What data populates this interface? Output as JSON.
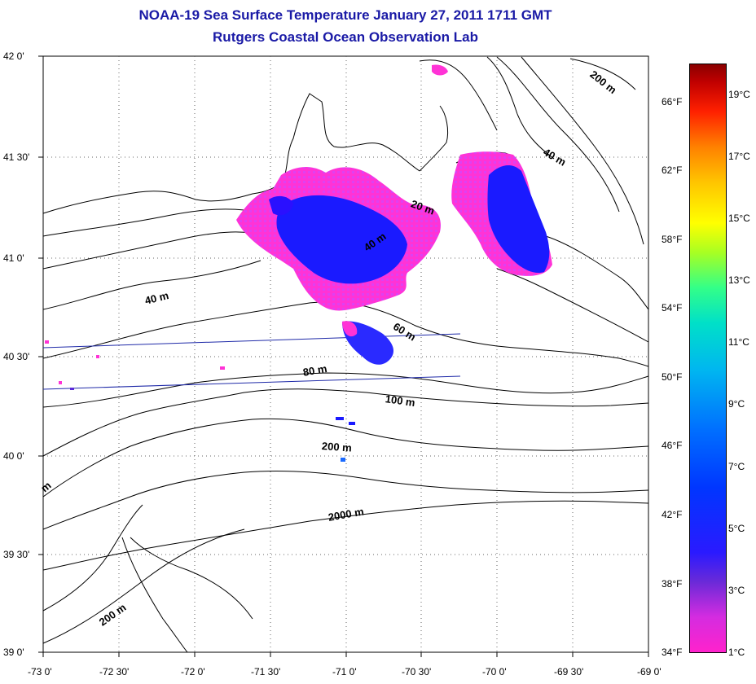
{
  "title": "NOAA-19 Sea Surface Temperature January 27, 2011 1711 GMT",
  "subtitle": "Rutgers Coastal Ocean Observation Lab",
  "lat_labels": [
    "42 0'",
    "41 30'",
    "41 0'",
    "40 30'",
    "40 0'",
    "39 30'",
    "39 0'"
  ],
  "lon_labels": [
    "-73 0'",
    "-72 30'",
    "-72 0'",
    "-71 30'",
    "-71 0'",
    "-70 30'",
    "-70 0'",
    "-69 30'",
    "-69 0'"
  ],
  "depth_labels": [
    "200 m",
    "40 m",
    "20 m",
    "40 m",
    "40 m",
    "60 m",
    "80 m",
    "100 m",
    "200 m",
    "2000 m",
    "200 m",
    "m"
  ],
  "colorbar": {
    "fahrenheit": [
      "66°F",
      "62°F",
      "58°F",
      "54°F",
      "50°F",
      "46°F",
      "42°F",
      "38°F",
      "34°F"
    ],
    "celsius": [
      "19°C",
      "17°C",
      "15°C",
      "13°C",
      "11°C",
      "9°C",
      "7°C",
      "5°C",
      "3°C",
      "1°C"
    ]
  },
  "colors": {
    "title": "#1a1aa6",
    "cold_pink": "#ff2ad4",
    "cold_blue": "#1a1aff",
    "track_line": "#1f2aa8"
  }
}
